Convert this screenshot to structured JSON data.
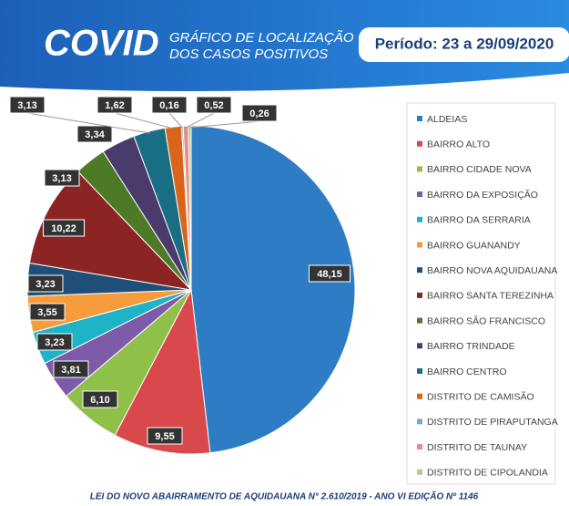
{
  "header": {
    "brand": "COVID",
    "subtitle_line1": "GRÁFICO DE LOCALIZAÇÃO",
    "subtitle_line2": "DOS CASOS POSITIVOS",
    "period": "Período: 23 a 29/09/2020"
  },
  "chart_data": {
    "type": "pie",
    "categories": [
      "ALDEIAS",
      "BAIRRO ALTO",
      "BAIRRO CIDADE NOVA",
      "BAIRRO DA EXPOSIÇÃO",
      "BAIRRO DA SERRARIA",
      "BAIRRO GUANANDY",
      "BAIRRO NOVA AQUIDAUANA",
      "BAIRRO SANTA TEREZINHA",
      "BAIRRO SÃO FRANCISCO",
      "BAIRRO TRINDADE",
      "BAIRRO CENTRO",
      "DISTRITO DE CAMISÃO",
      "DISTRITO DE PIRAPUTANGA",
      "DISTRITO DE TAUNAY",
      "DISTRITO DE CIPOLANDIA"
    ],
    "values": [
      48.15,
      9.55,
      6.1,
      3.81,
      3.23,
      3.55,
      3.23,
      10.22,
      3.13,
      3.34,
      3.13,
      1.62,
      0.16,
      0.52,
      0.26
    ],
    "value_labels": [
      "48,15",
      "9,55",
      "6,10",
      "3,81",
      "3,23",
      "3,55",
      "3,23",
      "10,22",
      "3,13",
      "3,34",
      "3,13",
      "1,62",
      "0,16",
      "0,52",
      "0,26"
    ],
    "colors": [
      "#2e7dc4",
      "#d9484b",
      "#8fc04a",
      "#7e5ba8",
      "#1fb3c8",
      "#f79c3c",
      "#1f4e79",
      "#8c2424",
      "#4e7a28",
      "#4b3a6c",
      "#1a6e84",
      "#d9651b",
      "#79a6d6",
      "#e88b8b",
      "#a9d18e"
    ]
  },
  "footer": "LEI DO NOVO ABAIRRAMENTO DE AQUIDAUANA N° 2.610/2019 - ANO VI  EDIÇÃO Nº 1146"
}
